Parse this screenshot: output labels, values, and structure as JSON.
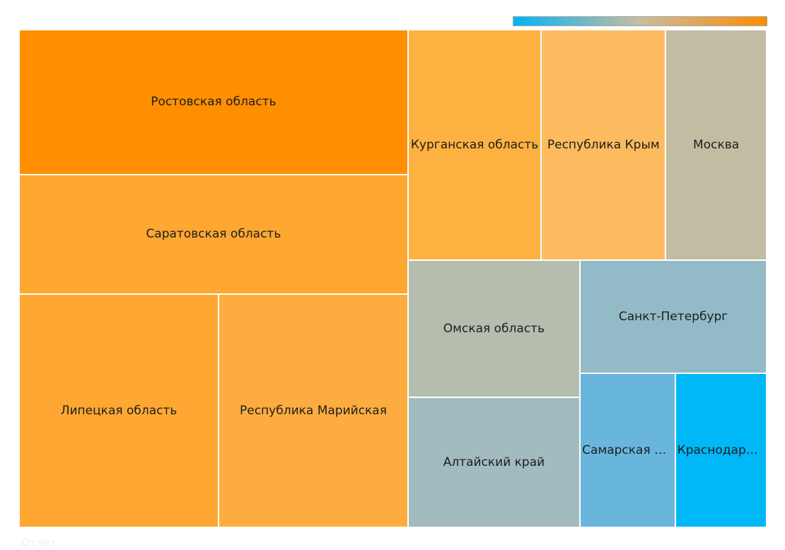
{
  "chart_data": {
    "type": "treemap",
    "color_scale": {
      "low": "#00b4f5",
      "mid": "#c8bda0",
      "high": "#ff8c00"
    },
    "items": [
      {
        "label": "Ростовская область",
        "value": 89.6,
        "color": "#ff8f00"
      },
      {
        "label": "Саратовская область",
        "value": 74.1,
        "color": "#fea731"
      },
      {
        "label": "Липецкая область",
        "value": 74.1,
        "color": "#fea833"
      },
      {
        "label": "Республика Марийская",
        "value": 70.3,
        "color": "#fdad3f"
      },
      {
        "label": "Курганская область",
        "value": 49.0,
        "color": "#fdb140"
      },
      {
        "label": "Республика Крым",
        "value": 45.7,
        "color": "#fdbb5f"
      },
      {
        "label": "Москва",
        "value": 37.1,
        "color": "#c2bca3"
      },
      {
        "label": "Омская область",
        "value": 37.4,
        "color": "#b4bdae"
      },
      {
        "label": "Алтайский край",
        "value": 35.7,
        "color": "#a1bbbf"
      },
      {
        "label": "Санкт-Петербург",
        "value": 33.6,
        "color": "#92bac7"
      },
      {
        "label": "Самарская область",
        "value": 23.3,
        "color": "#69b6dd"
      },
      {
        "label": "Краснодарский край",
        "value": 22.4,
        "color": "#00b7f8"
      }
    ]
  },
  "footer": {
    "label": "Отчет"
  }
}
